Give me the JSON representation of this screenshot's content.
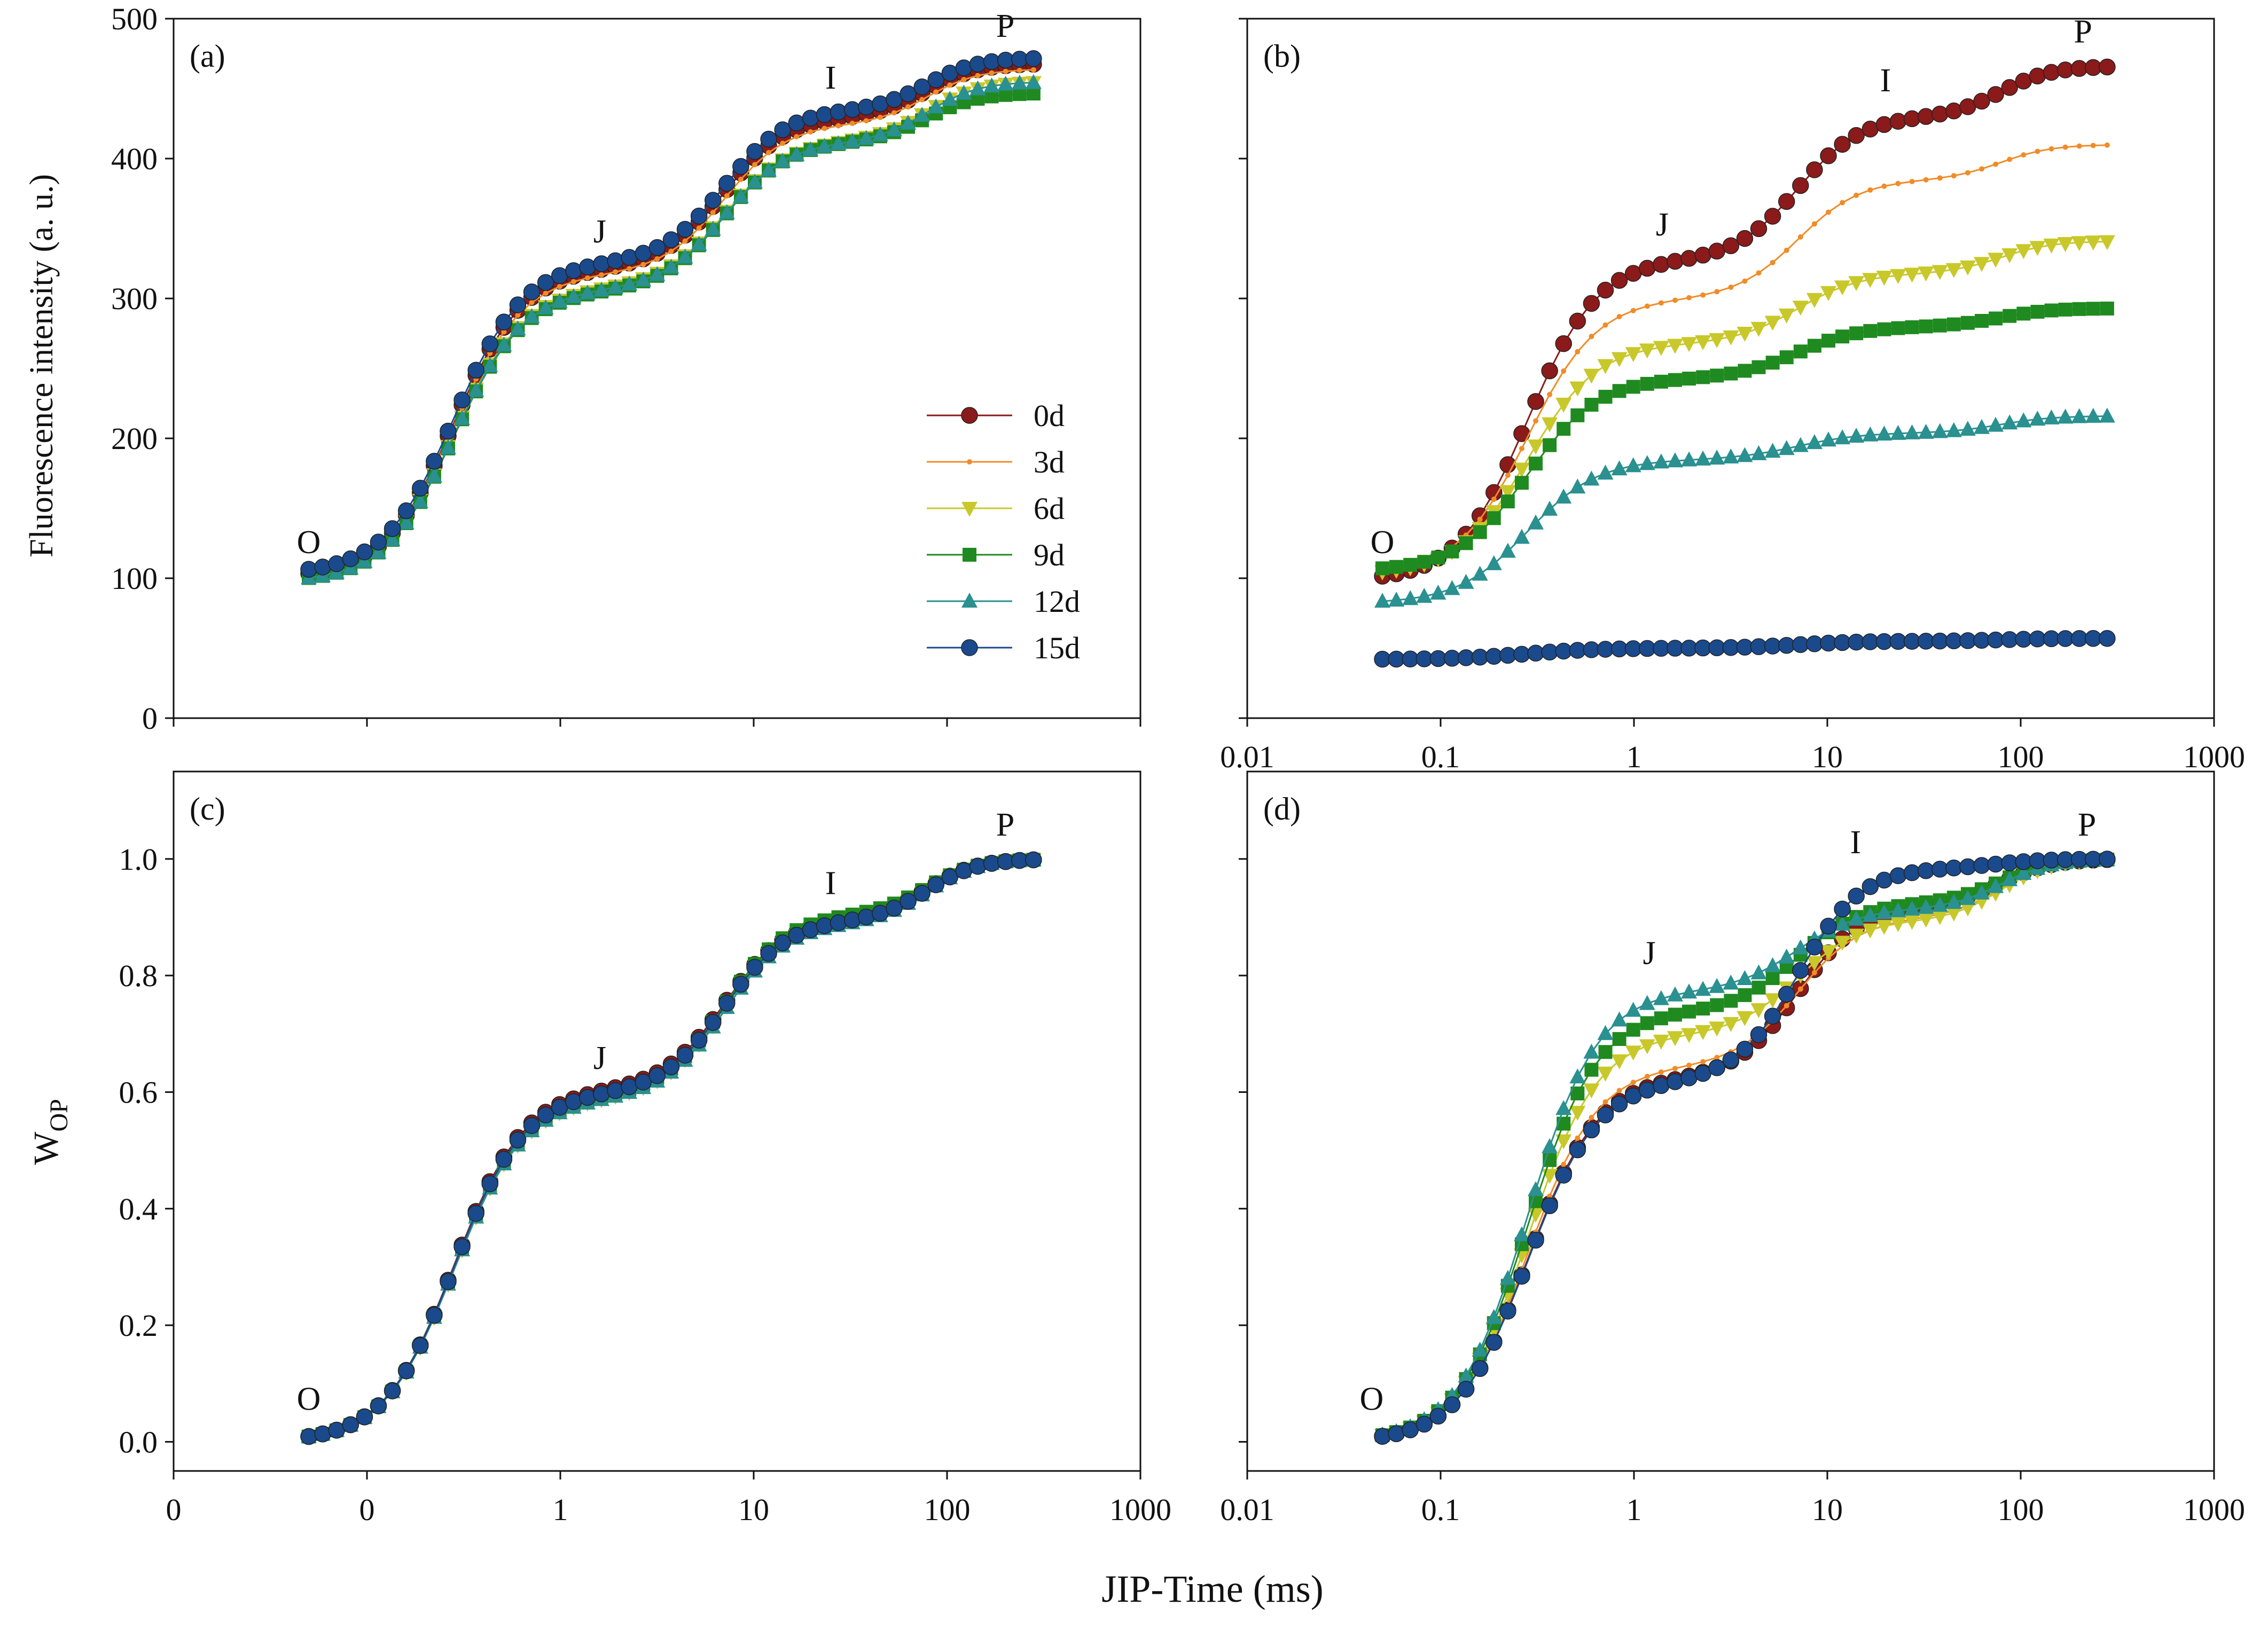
{
  "figure": {
    "xlabel": "JIP-Time (ms)",
    "ylabel_top": "Fluorescence intensity (a. u.)",
    "ylabel_bottom_main": "W",
    "ylabel_bottom_sub": "OP",
    "x_ticks_left": [
      "0",
      "0",
      "1",
      "10",
      "100",
      "1000"
    ],
    "x_ticks_right": [
      "0.01",
      "0.1",
      "1",
      "10",
      "100",
      "1000"
    ]
  },
  "legend": {
    "panel": "a",
    "position": "center-right",
    "entries": [
      {
        "label": "0d",
        "color": "#8b1a1a",
        "marker": "circle"
      },
      {
        "label": "3d",
        "color": "#f08c28",
        "marker": "dot"
      },
      {
        "label": "6d",
        "color": "#c8c82a",
        "marker": "triangle-down"
      },
      {
        "label": "9d",
        "color": "#1f8a1f",
        "marker": "square"
      },
      {
        "label": "12d",
        "color": "#2a9090",
        "marker": "triangle-up"
      },
      {
        "label": "15d",
        "color": "#1a4a8c",
        "marker": "circle"
      }
    ]
  },
  "chart_data": [
    {
      "id": "a",
      "label": "(a)",
      "type": "line",
      "xscale": "log",
      "xlim": [
        0.01,
        1000
      ],
      "ylim": [
        0,
        500
      ],
      "yticks": [
        0,
        100,
        200,
        300,
        400,
        500
      ],
      "ytick_labels": [
        "0",
        "100",
        "200",
        "300",
        "400",
        "500"
      ],
      "show_ytick_labels": true,
      "show_xtick_labels": false,
      "annotations": [
        {
          "text": "O",
          "x": 0.05,
          "y": 118
        },
        {
          "text": "J",
          "x": 1.6,
          "y": 340
        },
        {
          "text": "I",
          "x": 25,
          "y": 450
        },
        {
          "text": "P",
          "x": 200,
          "y": 487
        }
      ],
      "series": [
        {
          "name": "0d",
          "O": 100,
          "J": 322,
          "I": 430,
          "P": 468
        },
        {
          "name": "3d",
          "O": 100,
          "J": 318,
          "I": 425,
          "P": 464
        },
        {
          "name": "6d",
          "O": 98,
          "J": 308,
          "I": 413,
          "P": 455
        },
        {
          "name": "9d",
          "O": 97,
          "J": 306,
          "I": 412,
          "P": 447
        },
        {
          "name": "12d",
          "O": 97,
          "J": 307,
          "I": 412,
          "P": 455
        },
        {
          "name": "15d",
          "O": 103,
          "J": 326,
          "I": 435,
          "P": 472
        }
      ]
    },
    {
      "id": "b",
      "label": "(b)",
      "type": "line",
      "xscale": "log",
      "xlim": [
        0.01,
        1000
      ],
      "ylim": [
        0,
        500
      ],
      "yticks": [
        0,
        100,
        200,
        300,
        400,
        500
      ],
      "show_ytick_labels": false,
      "show_xtick_labels": true,
      "annotations": [
        {
          "text": "O",
          "x": 0.05,
          "y": 118
        },
        {
          "text": "J",
          "x": 1.4,
          "y": 345
        },
        {
          "text": "I",
          "x": 20,
          "y": 448
        },
        {
          "text": "P",
          "x": 210,
          "y": 483
        }
      ],
      "series": [
        {
          "name": "0d",
          "O": 98,
          "J": 328,
          "I": 430,
          "P": 466
        },
        {
          "name": "3d",
          "O": 102,
          "J": 300,
          "I": 385,
          "P": 410
        },
        {
          "name": "6d",
          "O": 102,
          "J": 268,
          "I": 318,
          "P": 341
        },
        {
          "name": "9d",
          "O": 105,
          "J": 243,
          "I": 280,
          "P": 293
        },
        {
          "name": "12d",
          "O": 82,
          "J": 185,
          "I": 204,
          "P": 216
        },
        {
          "name": "15d",
          "O": 42,
          "J": 50,
          "I": 55,
          "P": 57
        }
      ]
    },
    {
      "id": "c",
      "label": "(c)",
      "type": "line",
      "xscale": "log",
      "xlim": [
        0.01,
        1000
      ],
      "ylim": [
        -0.05,
        1.15
      ],
      "yticks": [
        0,
        0.2,
        0.4,
        0.6,
        0.8,
        1.0
      ],
      "ytick_labels": [
        "0.0",
        "0.2",
        "0.4",
        "0.6",
        "0.8",
        "1.0"
      ],
      "show_ytick_labels": true,
      "show_xtick_labels": true,
      "annotations": [
        {
          "text": "O",
          "x": 0.05,
          "y": 0.055
        },
        {
          "text": "J",
          "x": 1.6,
          "y": 0.64
        },
        {
          "text": "I",
          "x": 25,
          "y": 0.94
        },
        {
          "text": "P",
          "x": 200,
          "y": 1.04
        }
      ],
      "series": [
        {
          "name": "0d",
          "O": 0,
          "J": 0.605,
          "I": 0.9,
          "P": 1.0
        },
        {
          "name": "3d",
          "O": 0,
          "J": 0.6,
          "I": 0.895,
          "P": 1.0
        },
        {
          "name": "6d",
          "O": 0,
          "J": 0.59,
          "I": 0.895,
          "P": 1.0
        },
        {
          "name": "9d",
          "O": 0,
          "J": 0.595,
          "I": 0.905,
          "P": 1.0
        },
        {
          "name": "12d",
          "O": 0,
          "J": 0.59,
          "I": 0.89,
          "P": 1.0
        },
        {
          "name": "15d",
          "O": 0,
          "J": 0.6,
          "I": 0.895,
          "P": 1.0
        }
      ]
    },
    {
      "id": "d",
      "label": "(d)",
      "type": "line",
      "xscale": "log",
      "xlim": [
        0.01,
        1000
      ],
      "ylim": [
        -0.05,
        1.15
      ],
      "yticks": [
        0,
        0.2,
        0.4,
        0.6,
        0.8,
        1.0
      ],
      "show_ytick_labels": false,
      "show_xtick_labels": true,
      "annotations": [
        {
          "text": "O",
          "x": 0.044,
          "y": 0.055
        },
        {
          "text": "J",
          "x": 1.2,
          "y": 0.82
        },
        {
          "text": "I",
          "x": 14,
          "y": 1.01
        },
        {
          "text": "P",
          "x": 220,
          "y": 1.04
        }
      ],
      "series": [
        {
          "name": "0d",
          "O": 0,
          "J": 0.625,
          "I": 0.92,
          "P": 1.0
        },
        {
          "name": "3d",
          "O": 0,
          "J": 0.645,
          "I": 0.9,
          "P": 1.0
        },
        {
          "name": "6d",
          "O": 0,
          "J": 0.7,
          "I": 0.895,
          "P": 1.0
        },
        {
          "name": "9d",
          "O": 0,
          "J": 0.74,
          "I": 0.925,
          "P": 1.0
        },
        {
          "name": "12d",
          "O": 0,
          "J": 0.775,
          "I": 0.915,
          "P": 1.0
        },
        {
          "name": "15d",
          "O": 0,
          "J": 0.62,
          "I": 0.985,
          "P": 1.0
        }
      ]
    }
  ]
}
